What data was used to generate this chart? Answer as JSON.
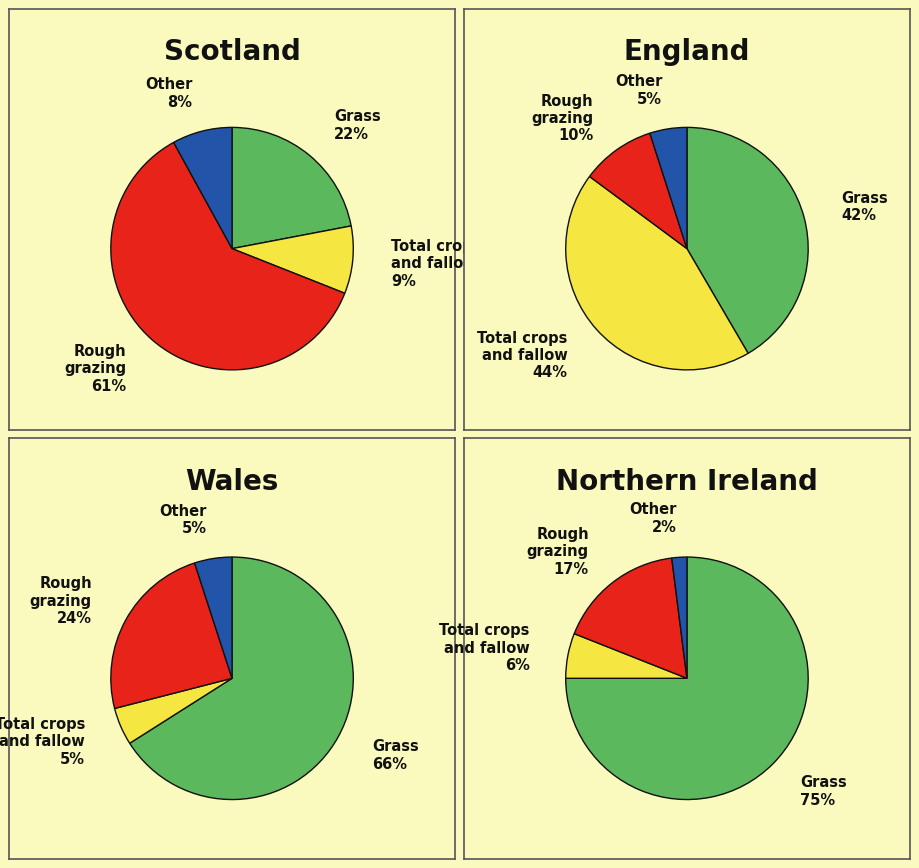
{
  "background_color": "#FAFABE",
  "border_color": "#555555",
  "title_fontsize": 20,
  "label_fontsize": 10.5,
  "charts": [
    {
      "title": "Scotland",
      "slices": [
        {
          "label": "Grass",
          "pct": 22,
          "color": "#5CB85C",
          "label_side": "right"
        },
        {
          "label": "Total crops\nand fallow",
          "pct": 9,
          "color": "#F5E642",
          "label_side": "right"
        },
        {
          "label": "Rough\ngrazing",
          "pct": 61,
          "color": "#E8231A",
          "label_side": "left"
        },
        {
          "label": "Other",
          "pct": 8,
          "color": "#2255AA",
          "label_side": "left"
        }
      ],
      "startangle": 90,
      "counterclock": false
    },
    {
      "title": "England",
      "slices": [
        {
          "label": "Grass",
          "pct": 42,
          "color": "#5CB85C",
          "label_side": "right"
        },
        {
          "label": "Total crops\nand fallow",
          "pct": 44,
          "color": "#F5E642",
          "label_side": "left"
        },
        {
          "label": "Rough\ngrazing",
          "pct": 10,
          "color": "#E8231A",
          "label_side": "left"
        },
        {
          "label": "Other",
          "pct": 5,
          "color": "#2255AA",
          "label_side": "left"
        }
      ],
      "startangle": 90,
      "counterclock": false
    },
    {
      "title": "Wales",
      "slices": [
        {
          "label": "Grass",
          "pct": 66,
          "color": "#5CB85C",
          "label_side": "right"
        },
        {
          "label": "Total crops\nand fallow",
          "pct": 5,
          "color": "#F5E642",
          "label_side": "left"
        },
        {
          "label": "Rough\ngrazing",
          "pct": 24,
          "color": "#E8231A",
          "label_side": "left"
        },
        {
          "label": "Other",
          "pct": 5,
          "color": "#2255AA",
          "label_side": "left"
        }
      ],
      "startangle": 90,
      "counterclock": false
    },
    {
      "title": "Northern Ireland",
      "slices": [
        {
          "label": "Grass",
          "pct": 75,
          "color": "#5CB85C",
          "label_side": "right"
        },
        {
          "label": "Total crops\nand fallow",
          "pct": 6,
          "color": "#F5E642",
          "label_side": "left"
        },
        {
          "label": "Rough\ngrazing",
          "pct": 17,
          "color": "#E8231A",
          "label_side": "left"
        },
        {
          "label": "Other",
          "pct": 2,
          "color": "#2255AA",
          "label_side": "left"
        }
      ],
      "startangle": 90,
      "counterclock": false
    }
  ]
}
